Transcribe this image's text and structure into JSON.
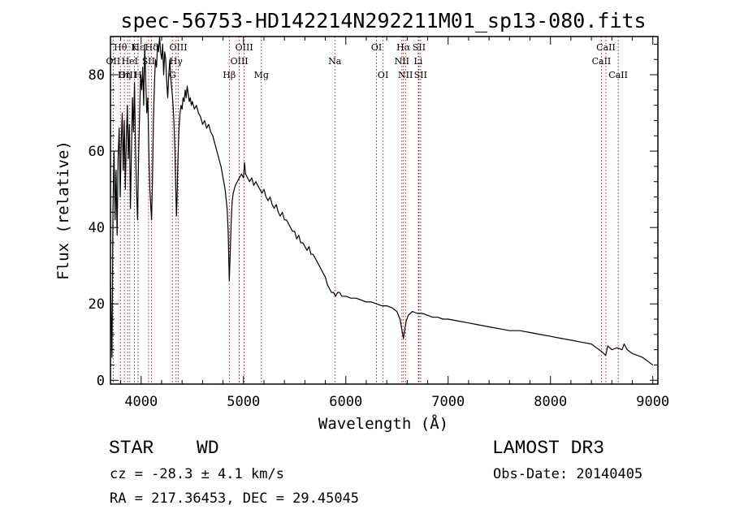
{
  "chart_data": {
    "type": "line",
    "title": "spec-56753-HD142214N292211M01_sp13-080.fits",
    "xlabel": "Wavelength (Å)",
    "ylabel": "Flux (relative)",
    "xlim": [
      3700,
      9050
    ],
    "ylim": [
      -1,
      90
    ],
    "xticks": [
      4000,
      5000,
      6000,
      7000,
      8000,
      9000
    ],
    "yticks": [
      0,
      20,
      40,
      60,
      80
    ],
    "grid": false,
    "line_color": "#000000",
    "marker_color": "#cc0000",
    "series": [
      {
        "name": "flux",
        "points": [
          [
            3700,
            26
          ],
          [
            3715,
            6
          ],
          [
            3725,
            45
          ],
          [
            3735,
            60
          ],
          [
            3745,
            42
          ],
          [
            3755,
            55
          ],
          [
            3765,
            38
          ],
          [
            3775,
            58
          ],
          [
            3785,
            66
          ],
          [
            3795,
            48
          ],
          [
            3805,
            62
          ],
          [
            3815,
            70
          ],
          [
            3825,
            55
          ],
          [
            3835,
            68
          ],
          [
            3845,
            50
          ],
          [
            3855,
            63
          ],
          [
            3865,
            72
          ],
          [
            3875,
            58
          ],
          [
            3885,
            67
          ],
          [
            3895,
            45
          ],
          [
            3905,
            60
          ],
          [
            3915,
            74
          ],
          [
            3925,
            65
          ],
          [
            3935,
            78
          ],
          [
            3945,
            60
          ],
          [
            3955,
            50
          ],
          [
            3965,
            42
          ],
          [
            3975,
            58
          ],
          [
            3985,
            70
          ],
          [
            3995,
            80
          ],
          [
            4005,
            76
          ],
          [
            4015,
            82
          ],
          [
            4025,
            72
          ],
          [
            4035,
            88
          ],
          [
            4045,
            78
          ],
          [
            4055,
            70
          ],
          [
            4065,
            74
          ],
          [
            4075,
            60
          ],
          [
            4085,
            50
          ],
          [
            4095,
            45
          ],
          [
            4102,
            42
          ],
          [
            4110,
            52
          ],
          [
            4120,
            68
          ],
          [
            4130,
            78
          ],
          [
            4140,
            84
          ],
          [
            4150,
            82
          ],
          [
            4160,
            88
          ],
          [
            4170,
            86
          ],
          [
            4180,
            90
          ],
          [
            4190,
            86
          ],
          [
            4200,
            84
          ],
          [
            4210,
            88
          ],
          [
            4220,
            80
          ],
          [
            4230,
            86
          ],
          [
            4240,
            84
          ],
          [
            4250,
            78
          ],
          [
            4260,
            74
          ],
          [
            4270,
            80
          ],
          [
            4280,
            84
          ],
          [
            4290,
            79
          ],
          [
            4300,
            76
          ],
          [
            4310,
            73
          ],
          [
            4320,
            68
          ],
          [
            4330,
            60
          ],
          [
            4340,
            48
          ],
          [
            4345,
            43
          ],
          [
            4350,
            47
          ],
          [
            4360,
            58
          ],
          [
            4370,
            66
          ],
          [
            4380,
            70
          ],
          [
            4390,
            72
          ],
          [
            4400,
            71
          ],
          [
            4410,
            74
          ],
          [
            4420,
            73
          ],
          [
            4430,
            76
          ],
          [
            4440,
            74
          ],
          [
            4450,
            77
          ],
          [
            4460,
            75
          ],
          [
            4470,
            73
          ],
          [
            4480,
            74
          ],
          [
            4490,
            72
          ],
          [
            4500,
            73
          ],
          [
            4520,
            71
          ],
          [
            4540,
            72
          ],
          [
            4560,
            70
          ],
          [
            4580,
            69
          ],
          [
            4600,
            67
          ],
          [
            4620,
            68
          ],
          [
            4640,
            66
          ],
          [
            4660,
            67
          ],
          [
            4680,
            65
          ],
          [
            4700,
            64
          ],
          [
            4720,
            62
          ],
          [
            4740,
            60
          ],
          [
            4760,
            58
          ],
          [
            4780,
            56
          ],
          [
            4800,
            53
          ],
          [
            4820,
            50
          ],
          [
            4840,
            45
          ],
          [
            4850,
            39
          ],
          [
            4861,
            26
          ],
          [
            4870,
            33
          ],
          [
            4880,
            42
          ],
          [
            4890,
            47
          ],
          [
            4900,
            49
          ],
          [
            4920,
            51
          ],
          [
            4940,
            52
          ],
          [
            4960,
            53
          ],
          [
            4980,
            54
          ],
          [
            5000,
            53
          ],
          [
            5010,
            57
          ],
          [
            5020,
            54
          ],
          [
            5040,
            53
          ],
          [
            5060,
            52
          ],
          [
            5080,
            53
          ],
          [
            5100,
            51
          ],
          [
            5120,
            52
          ],
          [
            5140,
            51
          ],
          [
            5160,
            50
          ],
          [
            5180,
            49
          ],
          [
            5200,
            50
          ],
          [
            5220,
            48
          ],
          [
            5240,
            47
          ],
          [
            5260,
            48
          ],
          [
            5280,
            46
          ],
          [
            5300,
            45
          ],
          [
            5320,
            46
          ],
          [
            5340,
            44
          ],
          [
            5360,
            43
          ],
          [
            5380,
            44
          ],
          [
            5400,
            42
          ],
          [
            5420,
            42
          ],
          [
            5440,
            41
          ],
          [
            5460,
            40
          ],
          [
            5480,
            39
          ],
          [
            5500,
            39
          ],
          [
            5520,
            37
          ],
          [
            5540,
            38
          ],
          [
            5560,
            36
          ],
          [
            5580,
            36
          ],
          [
            5600,
            35
          ],
          [
            5620,
            34
          ],
          [
            5640,
            35
          ],
          [
            5660,
            33
          ],
          [
            5680,
            33
          ],
          [
            5700,
            32
          ],
          [
            5720,
            31
          ],
          [
            5740,
            30
          ],
          [
            5760,
            29
          ],
          [
            5780,
            28
          ],
          [
            5800,
            27
          ],
          [
            5820,
            25
          ],
          [
            5840,
            24
          ],
          [
            5860,
            23
          ],
          [
            5880,
            23
          ],
          [
            5900,
            22
          ],
          [
            5920,
            23
          ],
          [
            5940,
            23
          ],
          [
            5960,
            22
          ],
          [
            5980,
            22
          ],
          [
            6000,
            22
          ],
          [
            6050,
            21.5
          ],
          [
            6100,
            21.5
          ],
          [
            6150,
            21
          ],
          [
            6200,
            20.5
          ],
          [
            6250,
            20.5
          ],
          [
            6300,
            20
          ],
          [
            6350,
            19.5
          ],
          [
            6400,
            19.5
          ],
          [
            6450,
            19
          ],
          [
            6500,
            18
          ],
          [
            6530,
            16
          ],
          [
            6550,
            13
          ],
          [
            6563,
            11
          ],
          [
            6575,
            13
          ],
          [
            6590,
            15.5
          ],
          [
            6610,
            17
          ],
          [
            6630,
            17.5
          ],
          [
            6650,
            18
          ],
          [
            6700,
            17.5
          ],
          [
            6750,
            17.5
          ],
          [
            6800,
            17
          ],
          [
            6850,
            16.5
          ],
          [
            6900,
            16.5
          ],
          [
            6950,
            16
          ],
          [
            7000,
            16
          ],
          [
            7100,
            15.5
          ],
          [
            7200,
            15
          ],
          [
            7300,
            14.5
          ],
          [
            7400,
            14
          ],
          [
            7500,
            13.5
          ],
          [
            7600,
            13
          ],
          [
            7700,
            13
          ],
          [
            7800,
            12.5
          ],
          [
            7900,
            12
          ],
          [
            8000,
            11.5
          ],
          [
            8100,
            11
          ],
          [
            8200,
            10.5
          ],
          [
            8300,
            10
          ],
          [
            8400,
            9.5
          ],
          [
            8450,
            8.5
          ],
          [
            8500,
            7.5
          ],
          [
            8540,
            6.5
          ],
          [
            8560,
            9
          ],
          [
            8600,
            8
          ],
          [
            8650,
            8.5
          ],
          [
            8700,
            8
          ],
          [
            8720,
            9.5
          ],
          [
            8750,
            8
          ],
          [
            8800,
            7
          ],
          [
            8850,
            6.5
          ],
          [
            8900,
            6
          ],
          [
            8950,
            5
          ],
          [
            9000,
            4
          ]
        ]
      }
    ],
    "lines": [
      {
        "label": "Hθ",
        "wl": 3797,
        "row": 1
      },
      {
        "label": "OII",
        "wl": 3727,
        "row": 2
      },
      {
        "label": "OIII",
        "wl": 3868,
        "row": 3
      },
      {
        "label": "Hη",
        "wl": 3835,
        "row": 3
      },
      {
        "label": "HeI",
        "wl": 3889,
        "row": 2
      },
      {
        "label": "K",
        "wl": 3934,
        "row": 1
      },
      {
        "label": "H",
        "wl": 3969,
        "row": 3
      },
      {
        "label": "Hε",
        "wl": 3970,
        "row": 1
      },
      {
        "label": "SII",
        "wl": 4072,
        "row": 2
      },
      {
        "label": "Hδ",
        "wl": 4102,
        "row": 1
      },
      {
        "label": "G",
        "wl": 4305,
        "row": 3
      },
      {
        "label": "Hγ",
        "wl": 4341,
        "row": 2
      },
      {
        "label": "OIII",
        "wl": 4363,
        "row": 1
      },
      {
        "label": "Hβ",
        "wl": 4861,
        "row": 3
      },
      {
        "label": "OIII",
        "wl": 4959,
        "row": 2
      },
      {
        "label": "OIII",
        "wl": 5007,
        "row": 1
      },
      {
        "label": "Mg",
        "wl": 5175,
        "row": 3
      },
      {
        "label": "Na",
        "wl": 5893,
        "row": 2
      },
      {
        "label": "OI",
        "wl": 6300,
        "row": 1
      },
      {
        "label": "OI",
        "wl": 6364,
        "row": 3
      },
      {
        "label": "NII",
        "wl": 6548,
        "row": 2
      },
      {
        "label": "Hα",
        "wl": 6563,
        "row": 1
      },
      {
        "label": "NII",
        "wl": 6583,
        "row": 3
      },
      {
        "label": "SII",
        "wl": 6716,
        "row": 1
      },
      {
        "label": "Li",
        "wl": 6708,
        "row": 2
      },
      {
        "label": "SII",
        "wl": 6731,
        "row": 3
      },
      {
        "label": "CaII",
        "wl": 8498,
        "row": 2
      },
      {
        "label": "CaII",
        "wl": 8542,
        "row": 1
      },
      {
        "label": "CaII",
        "wl": 8662,
        "row": 3
      }
    ]
  },
  "info": {
    "object_class": "STAR",
    "subclass": "WD",
    "survey": "LAMOST DR3",
    "cz": "cz = -28.3 ± 4.1 km/s",
    "obs_date": "Obs-Date: 20140405",
    "coords": "RA = 217.36453, DEC =  29.45045"
  }
}
